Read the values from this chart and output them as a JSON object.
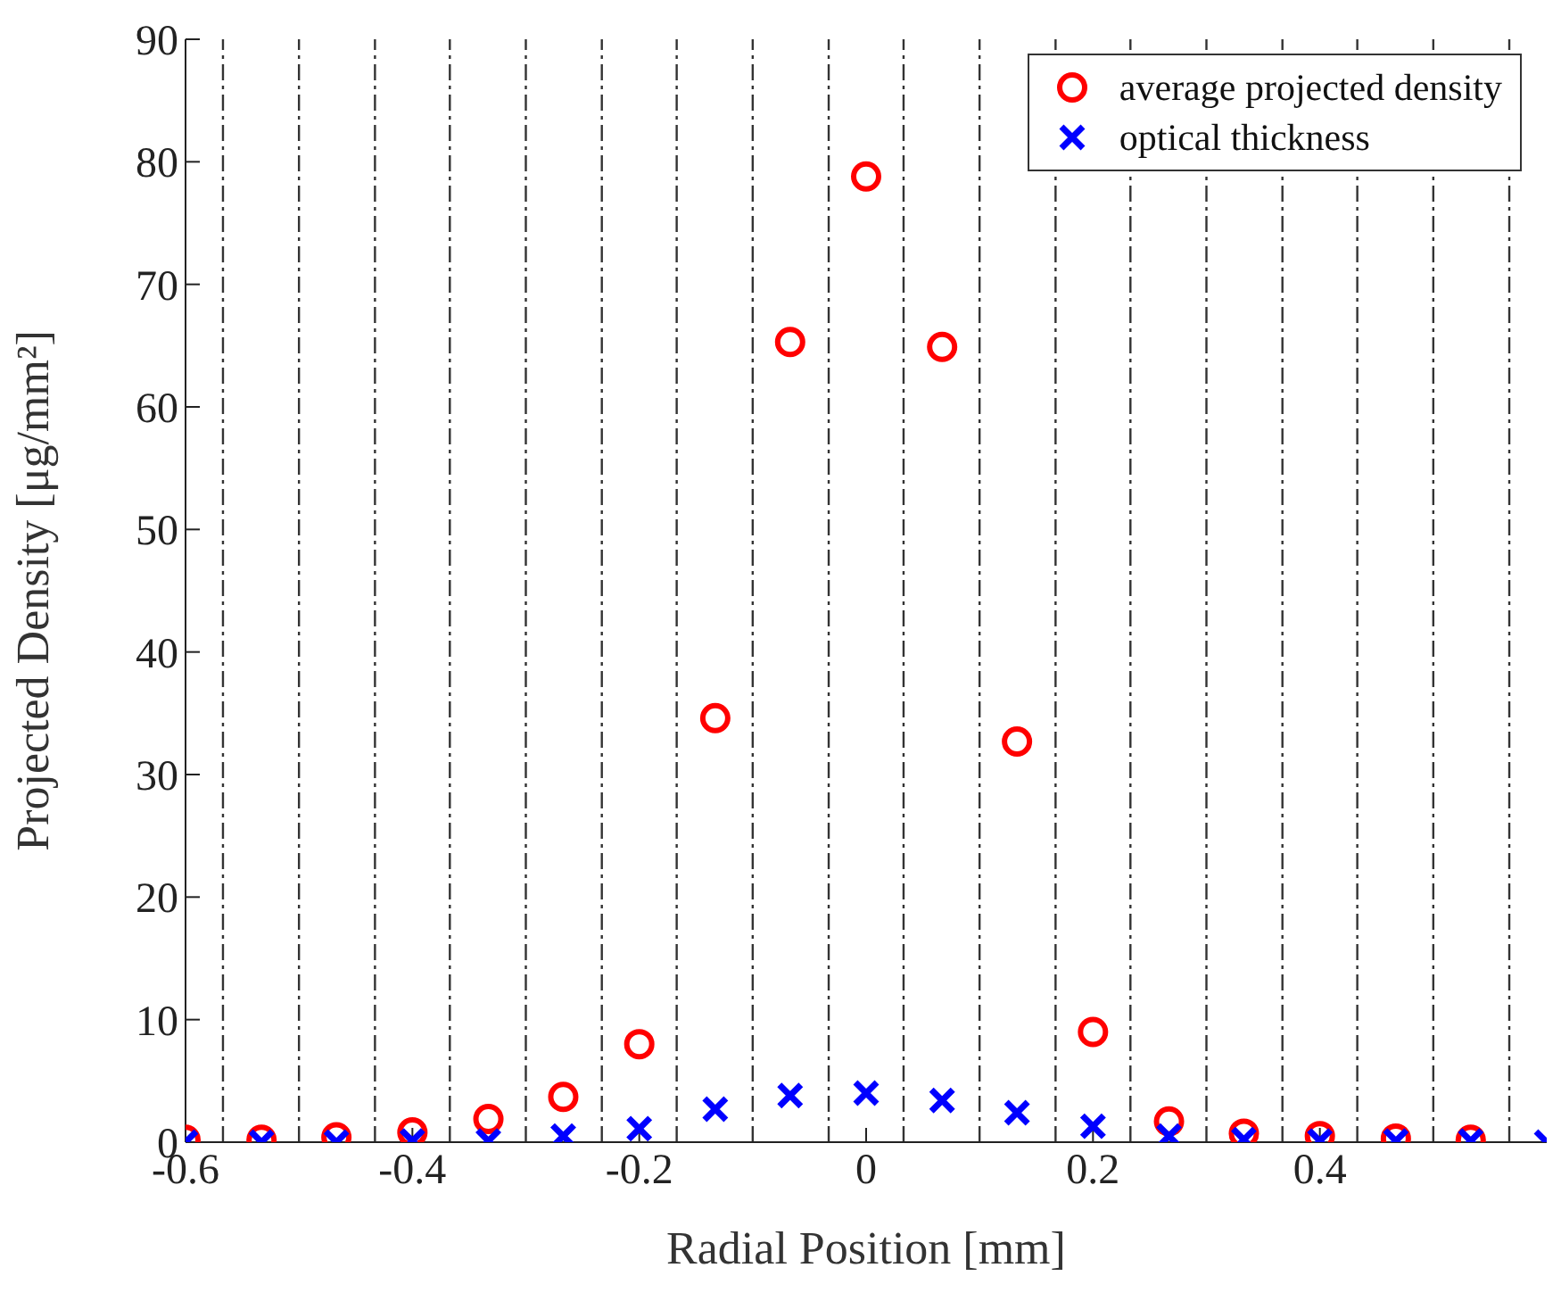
{
  "chart_data": {
    "type": "scatter",
    "xlabel": "Radial Position [mm]",
    "ylabel": "Projected Density [μg/mm²]",
    "x": [
      -0.6,
      -0.533,
      -0.467,
      -0.4,
      -0.333,
      -0.267,
      -0.2,
      -0.133,
      -0.067,
      0,
      0.067,
      0.133,
      0.2,
      0.267,
      0.333,
      0.4,
      0.467,
      0.533,
      0.6
    ],
    "series": [
      {
        "name": "average projected density",
        "color": "#ff0000",
        "marker": "circle",
        "values": [
          0.2,
          0.2,
          0.4,
          0.8,
          1.9,
          3.7,
          8.0,
          34.6,
          65.3,
          78.8,
          64.9,
          32.7,
          9.0,
          1.7,
          0.7,
          0.5,
          0.3,
          0.2,
          null
        ]
      },
      {
        "name": "optical thickness",
        "color": "#0000ff",
        "marker": "cross",
        "values": [
          0,
          0,
          0,
          0.1,
          0.1,
          0.5,
          1.1,
          2.7,
          3.8,
          4.0,
          3.4,
          2.4,
          1.3,
          0.5,
          0.2,
          0.1,
          0.1,
          0.1,
          0
        ]
      }
    ],
    "xlim": [
      -0.6,
      0.6
    ],
    "xticks": [
      -0.6,
      -0.4,
      -0.2,
      0,
      0.2,
      0.4
    ],
    "ylim": [
      0,
      90
    ],
    "yticks": [
      0,
      10,
      20,
      30,
      40,
      50,
      60,
      70,
      80,
      90
    ],
    "ref_lines": [
      {
        "axis": "x",
        "value": -0.567,
        "color": "#333333",
        "line_style": "dashdot"
      },
      {
        "axis": "x",
        "value": -0.5,
        "color": "#333333",
        "line_style": "dashdot"
      },
      {
        "axis": "x",
        "value": -0.433,
        "color": "#333333",
        "line_style": "dashdot"
      },
      {
        "axis": "x",
        "value": -0.367,
        "color": "#333333",
        "line_style": "dashdot"
      },
      {
        "axis": "x",
        "value": -0.3,
        "color": "#333333",
        "line_style": "dashdot"
      },
      {
        "axis": "x",
        "value": -0.233,
        "color": "#333333",
        "line_style": "dashdot"
      },
      {
        "axis": "x",
        "value": -0.167,
        "color": "#333333",
        "line_style": "dashdot"
      },
      {
        "axis": "x",
        "value": -0.1,
        "color": "#333333",
        "line_style": "dashdot"
      },
      {
        "axis": "x",
        "value": -0.033,
        "color": "#333333",
        "line_style": "dashdot"
      },
      {
        "axis": "x",
        "value": 0.033,
        "color": "#333333",
        "line_style": "dashdot"
      },
      {
        "axis": "x",
        "value": 0.1,
        "color": "#333333",
        "line_style": "dashdot"
      },
      {
        "axis": "x",
        "value": 0.167,
        "color": "#333333",
        "line_style": "dashdot"
      },
      {
        "axis": "x",
        "value": 0.233,
        "color": "#333333",
        "line_style": "dashdot"
      },
      {
        "axis": "x",
        "value": 0.3,
        "color": "#333333",
        "line_style": "dashdot"
      },
      {
        "axis": "x",
        "value": 0.367,
        "color": "#333333",
        "line_style": "dashdot"
      },
      {
        "axis": "x",
        "value": 0.433,
        "color": "#333333",
        "line_style": "dashdot"
      },
      {
        "axis": "x",
        "value": 0.5,
        "color": "#333333",
        "line_style": "dashdot"
      },
      {
        "axis": "x",
        "value": 0.567,
        "color": "#333333",
        "line_style": "dashdot"
      }
    ],
    "grid": false,
    "legend": "top right"
  }
}
